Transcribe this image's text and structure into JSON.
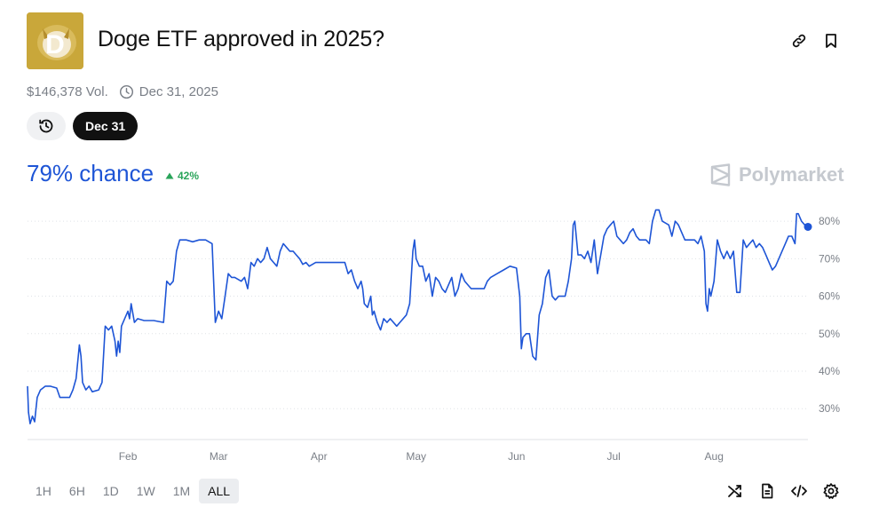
{
  "header": {
    "title": "Doge ETF approved in 2025?",
    "volume": "$146,378 Vol.",
    "end_date": "Dec 31, 2025",
    "date_chip": "Dec 31"
  },
  "summary": {
    "chance": "79% chance",
    "change": "42%",
    "brand": "Polymarket"
  },
  "time_ranges": [
    {
      "label": "1H",
      "active": false
    },
    {
      "label": "6H",
      "active": false
    },
    {
      "label": "1D",
      "active": false
    },
    {
      "label": "1W",
      "active": false
    },
    {
      "label": "1M",
      "active": false
    },
    {
      "label": "ALL",
      "active": true
    }
  ],
  "colors": {
    "accent": "#1e55d6",
    "positive": "#2aa45a",
    "muted": "#7a7f87",
    "logo_bg": "#c9a73a"
  },
  "icons": [
    "link-icon",
    "bookmark-icon",
    "clock-icon",
    "history-icon",
    "shuffle-icon",
    "document-icon",
    "code-icon",
    "gear-icon"
  ],
  "chart_data": {
    "type": "line",
    "x_unit": "days since Jan 1 2025",
    "series": [
      {
        "values": [
          [
            11,
            36
          ],
          [
            11.3,
            29
          ],
          [
            11.8,
            26
          ],
          [
            12.5,
            28
          ],
          [
            13.2,
            26.5
          ],
          [
            14,
            33
          ],
          [
            15,
            35
          ],
          [
            16.5,
            36
          ],
          [
            18,
            36
          ],
          [
            20,
            35.5
          ],
          [
            21,
            33
          ],
          [
            24,
            33
          ],
          [
            25,
            35
          ],
          [
            26,
            38
          ],
          [
            27,
            47
          ],
          [
            27.5,
            44
          ],
          [
            28,
            37
          ],
          [
            29,
            35
          ],
          [
            30,
            36
          ],
          [
            31,
            34.5
          ],
          [
            33,
            35
          ],
          [
            34,
            37
          ],
          [
            35,
            52
          ],
          [
            36,
            51
          ],
          [
            37,
            52
          ],
          [
            38,
            48
          ],
          [
            38.5,
            44
          ],
          [
            39,
            48
          ],
          [
            39.5,
            45
          ],
          [
            40,
            52
          ],
          [
            41,
            54
          ],
          [
            42,
            56
          ],
          [
            42.5,
            54
          ],
          [
            43,
            58
          ],
          [
            44,
            53
          ],
          [
            45,
            54
          ],
          [
            47,
            53.5
          ],
          [
            50,
            53.5
          ],
          [
            53,
            53
          ],
          [
            54,
            64
          ],
          [
            55,
            63
          ],
          [
            56,
            64
          ],
          [
            57,
            72
          ],
          [
            58,
            75
          ],
          [
            60,
            75
          ],
          [
            62,
            74.5
          ],
          [
            64,
            75
          ],
          [
            66,
            75
          ],
          [
            67,
            74.5
          ],
          [
            68,
            74
          ],
          [
            69,
            53
          ],
          [
            70,
            56
          ],
          [
            71,
            54
          ],
          [
            72,
            60
          ],
          [
            73,
            66
          ],
          [
            74,
            65
          ],
          [
            75,
            65
          ],
          [
            77,
            64
          ],
          [
            78,
            65
          ],
          [
            79,
            62
          ],
          [
            80,
            69
          ],
          [
            81,
            68
          ],
          [
            82,
            70
          ],
          [
            83,
            69
          ],
          [
            84,
            70
          ],
          [
            85,
            73
          ],
          [
            86,
            70
          ],
          [
            87,
            69
          ],
          [
            88,
            68
          ],
          [
            89,
            72
          ],
          [
            90,
            74
          ],
          [
            91,
            73
          ],
          [
            92,
            72
          ],
          [
            93,
            72
          ],
          [
            94,
            71
          ],
          [
            95,
            70
          ],
          [
            96,
            68.5
          ],
          [
            97,
            69
          ],
          [
            98,
            68
          ],
          [
            100,
            69
          ],
          [
            103,
            69
          ],
          [
            106,
            69
          ],
          [
            109,
            69
          ],
          [
            110,
            66
          ],
          [
            111,
            67
          ],
          [
            112,
            64
          ],
          [
            113,
            62
          ],
          [
            114,
            64
          ],
          [
            114.5,
            62
          ],
          [
            115,
            58
          ],
          [
            116,
            57
          ],
          [
            117,
            60
          ],
          [
            117.5,
            55
          ],
          [
            118,
            56
          ],
          [
            119,
            53
          ],
          [
            120,
            51
          ],
          [
            121,
            54
          ],
          [
            122,
            53
          ],
          [
            123,
            54
          ],
          [
            125,
            52
          ],
          [
            126,
            53
          ],
          [
            128,
            55
          ],
          [
            129,
            58
          ],
          [
            130,
            72
          ],
          [
            130.5,
            75
          ],
          [
            131,
            70
          ],
          [
            132,
            68
          ],
          [
            133,
            68
          ],
          [
            134,
            64
          ],
          [
            135,
            66
          ],
          [
            136,
            60
          ],
          [
            137,
            65
          ],
          [
            138,
            64
          ],
          [
            139,
            62
          ],
          [
            140,
            61
          ],
          [
            141,
            63
          ],
          [
            142,
            65
          ],
          [
            143,
            60
          ],
          [
            144,
            62
          ],
          [
            145,
            66
          ],
          [
            146,
            64
          ],
          [
            147,
            63
          ],
          [
            148,
            62
          ],
          [
            150,
            62
          ],
          [
            152,
            62
          ],
          [
            153,
            64
          ],
          [
            154,
            65
          ],
          [
            156,
            66
          ],
          [
            158,
            67
          ],
          [
            160,
            68
          ],
          [
            162,
            67.5
          ],
          [
            163,
            60
          ],
          [
            163.5,
            46
          ],
          [
            164,
            49
          ],
          [
            165,
            50
          ],
          [
            166,
            50
          ],
          [
            167,
            44
          ],
          [
            168,
            43
          ],
          [
            169,
            55
          ],
          [
            170,
            58
          ],
          [
            171,
            65
          ],
          [
            172,
            67
          ],
          [
            173,
            60
          ],
          [
            174,
            59
          ],
          [
            175,
            60
          ],
          [
            176,
            60
          ],
          [
            177,
            60
          ],
          [
            178,
            64
          ],
          [
            179,
            70
          ],
          [
            179.5,
            79
          ],
          [
            180,
            80
          ],
          [
            181,
            71
          ],
          [
            182,
            71
          ],
          [
            183,
            70
          ],
          [
            184,
            72
          ],
          [
            185,
            69
          ],
          [
            186,
            75
          ],
          [
            187,
            66
          ],
          [
            188,
            71
          ],
          [
            189,
            76
          ],
          [
            190,
            78
          ],
          [
            191,
            79
          ],
          [
            192,
            80
          ],
          [
            193,
            76
          ],
          [
            194,
            75
          ],
          [
            195,
            74
          ],
          [
            196,
            75
          ],
          [
            197,
            77
          ],
          [
            198,
            78
          ],
          [
            199,
            76
          ],
          [
            200,
            75
          ],
          [
            202,
            75
          ],
          [
            203,
            74
          ],
          [
            204,
            80
          ],
          [
            205,
            83
          ],
          [
            206,
            83
          ],
          [
            207,
            80
          ],
          [
            209,
            79
          ],
          [
            210,
            76
          ],
          [
            211,
            80
          ],
          [
            212,
            79
          ],
          [
            214,
            75
          ],
          [
            216,
            75
          ],
          [
            217,
            75
          ],
          [
            218,
            74
          ],
          [
            219,
            76
          ],
          [
            220,
            72
          ],
          [
            220.5,
            58
          ],
          [
            221,
            56
          ],
          [
            221.5,
            62
          ],
          [
            222,
            60
          ],
          [
            223,
            64
          ],
          [
            224,
            75
          ],
          [
            225,
            72
          ],
          [
            226,
            70
          ],
          [
            227,
            72
          ],
          [
            228,
            70
          ],
          [
            229,
            72
          ],
          [
            230,
            61
          ],
          [
            231,
            61
          ],
          [
            232,
            75
          ],
          [
            233,
            73
          ],
          [
            234,
            74
          ],
          [
            235,
            75
          ],
          [
            236,
            73
          ],
          [
            237,
            74
          ],
          [
            238,
            73
          ],
          [
            239,
            71
          ],
          [
            240,
            69
          ],
          [
            241,
            67
          ],
          [
            242,
            68
          ],
          [
            243,
            70
          ],
          [
            244,
            72
          ],
          [
            245,
            74
          ],
          [
            246,
            76
          ],
          [
            247,
            76
          ],
          [
            248,
            74
          ],
          [
            248.5,
            82
          ],
          [
            249,
            82
          ],
          [
            250,
            80
          ],
          [
            251,
            79
          ],
          [
            252,
            78.5
          ]
        ]
      }
    ],
    "x_ticks": [
      {
        "x": 42,
        "label": "Feb"
      },
      {
        "x": 70,
        "label": "Mar"
      },
      {
        "x": 101,
        "label": "Apr"
      },
      {
        "x": 131,
        "label": "May"
      },
      {
        "x": 162,
        "label": "Jun"
      },
      {
        "x": 192,
        "label": "Jul"
      },
      {
        "x": 223,
        "label": "Aug"
      }
    ],
    "y_ticks": [
      30,
      40,
      50,
      60,
      70,
      80
    ],
    "y_tick_suffix": "%",
    "xlim": [
      11,
      252
    ],
    "ylim": [
      22,
      85
    ],
    "grid": "horizontal-dotted"
  }
}
